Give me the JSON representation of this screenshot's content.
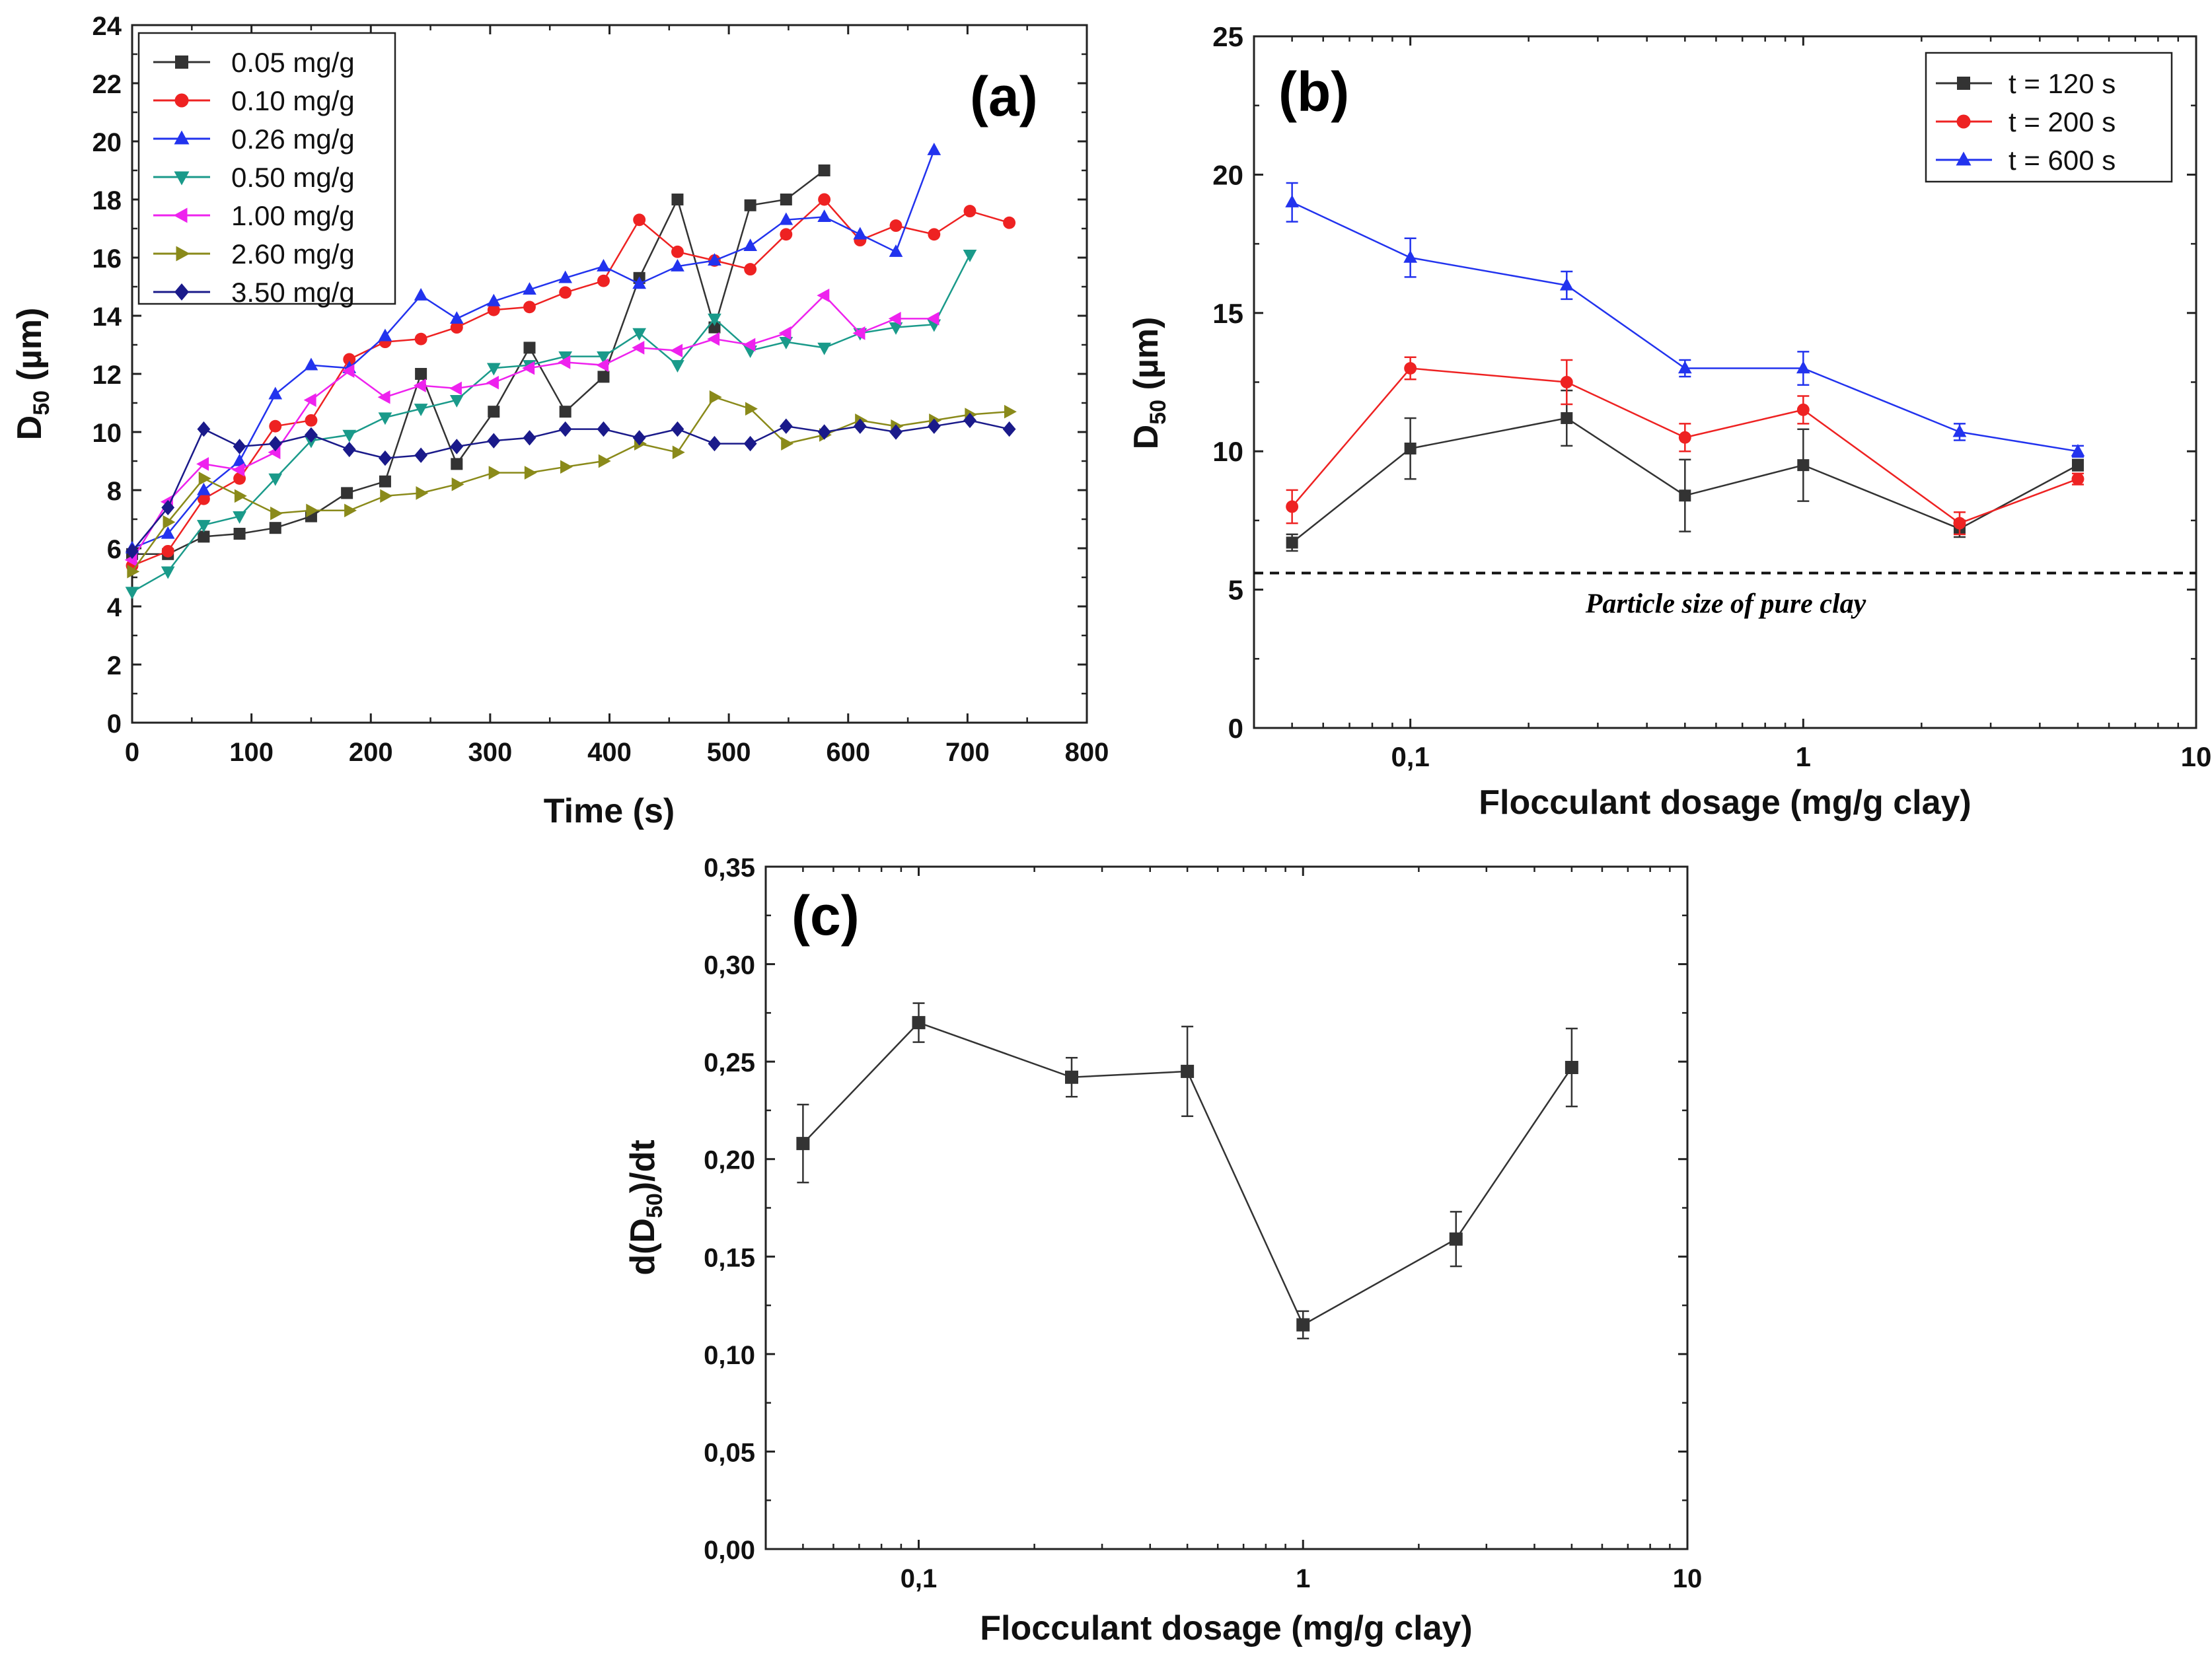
{
  "chart_data": [
    {
      "panel": "(a)",
      "type": "line",
      "xlabel": "Time (s)",
      "ylabel": "D50 (µm)",
      "xlim": [
        0,
        800
      ],
      "ylim": [
        0,
        24
      ],
      "xticks": [
        0,
        100,
        200,
        300,
        400,
        500,
        600,
        700,
        800
      ],
      "yticks": [
        0,
        2,
        4,
        6,
        8,
        10,
        12,
        14,
        16,
        18,
        20,
        22,
        24
      ],
      "legend_position": "top-left",
      "series": [
        {
          "name": "0.05 mg/g",
          "color": "#333333",
          "marker": "square",
          "x": [
            0,
            30,
            60,
            90,
            120,
            150,
            180,
            212,
            242,
            272,
            303,
            333,
            363,
            395,
            425,
            457,
            488,
            518,
            548,
            580
          ],
          "y": [
            5.8,
            5.8,
            6.4,
            6.5,
            6.7,
            7.1,
            7.9,
            8.3,
            12.0,
            8.9,
            10.7,
            12.9,
            10.7,
            11.9,
            15.3,
            18.0,
            13.6,
            17.8,
            18.0,
            19.0
          ]
        },
        {
          "name": "0.10 mg/g",
          "color": "#ee2222",
          "marker": "circle",
          "x": [
            0,
            30,
            60,
            90,
            120,
            150,
            182,
            212,
            242,
            272,
            303,
            333,
            363,
            395,
            425,
            457,
            488,
            518,
            548,
            580,
            610,
            640,
            672,
            702,
            735
          ],
          "y": [
            5.4,
            5.9,
            7.7,
            8.4,
            10.2,
            10.4,
            12.5,
            13.1,
            13.2,
            13.6,
            14.2,
            14.3,
            14.8,
            15.2,
            17.3,
            16.2,
            15.9,
            15.6,
            16.8,
            18.0,
            16.6,
            17.1,
            16.8,
            17.6,
            17.2
          ]
        },
        {
          "name": "0.26 mg/g",
          "color": "#2233ee",
          "marker": "triangle-up",
          "x": [
            0,
            30,
            60,
            90,
            120,
            150,
            182,
            212,
            242,
            272,
            303,
            333,
            363,
            395,
            425,
            457,
            488,
            518,
            548,
            580,
            610,
            640,
            672
          ],
          "y": [
            6.0,
            6.5,
            8.0,
            9.0,
            11.3,
            12.3,
            12.2,
            13.3,
            14.7,
            13.9,
            14.5,
            14.9,
            15.3,
            15.7,
            15.1,
            15.7,
            15.9,
            16.4,
            17.3,
            17.4,
            16.8,
            16.2,
            19.7
          ]
        },
        {
          "name": "0.50 mg/g",
          "color": "#1a9a8a",
          "marker": "triangle-down",
          "x": [
            0,
            30,
            60,
            90,
            120,
            150,
            182,
            212,
            242,
            272,
            303,
            333,
            363,
            395,
            425,
            457,
            488,
            518,
            548,
            580,
            610,
            640,
            672,
            702
          ],
          "y": [
            4.5,
            5.2,
            6.8,
            7.1,
            8.4,
            9.7,
            9.9,
            10.5,
            10.8,
            11.1,
            12.2,
            12.3,
            12.6,
            12.6,
            13.4,
            12.3,
            13.9,
            12.8,
            13.1,
            12.9,
            13.4,
            13.6,
            13.7,
            16.1
          ]
        },
        {
          "name": "1.00 mg/g",
          "color": "#ee22ee",
          "marker": "triangle-left",
          "x": [
            0,
            30,
            60,
            90,
            120,
            150,
            182,
            212,
            242,
            272,
            303,
            333,
            363,
            395,
            425,
            457,
            488,
            518,
            548,
            580,
            610,
            640,
            672
          ],
          "y": [
            5.6,
            7.6,
            8.9,
            8.7,
            9.3,
            11.1,
            12.1,
            11.2,
            11.6,
            11.5,
            11.7,
            12.2,
            12.4,
            12.3,
            12.9,
            12.8,
            13.2,
            13.0,
            13.4,
            14.7,
            13.4,
            13.9,
            13.9
          ]
        },
        {
          "name": "2.60 mg/g",
          "color": "#8a8a1a",
          "marker": "triangle-right",
          "x": [
            0,
            30,
            60,
            90,
            120,
            150,
            182,
            212,
            242,
            272,
            303,
            333,
            363,
            395,
            425,
            457,
            488,
            518,
            548,
            580,
            610,
            640,
            672,
            702,
            735
          ],
          "y": [
            5.2,
            6.9,
            8.4,
            7.8,
            7.2,
            7.3,
            7.3,
            7.8,
            7.9,
            8.2,
            8.6,
            8.6,
            8.8,
            9.0,
            9.6,
            9.3,
            11.2,
            10.8,
            9.6,
            9.9,
            10.4,
            10.2,
            10.4,
            10.6,
            10.7
          ]
        },
        {
          "name": "3.50 mg/g",
          "color": "#1a1a8a",
          "marker": "diamond",
          "x": [
            0,
            30,
            60,
            90,
            120,
            150,
            182,
            212,
            242,
            272,
            303,
            333,
            363,
            395,
            425,
            457,
            488,
            518,
            548,
            580,
            610,
            640,
            672,
            702,
            735
          ],
          "y": [
            5.9,
            7.4,
            10.1,
            9.5,
            9.6,
            9.9,
            9.4,
            9.1,
            9.2,
            9.5,
            9.7,
            9.8,
            10.1,
            10.1,
            9.8,
            10.1,
            9.6,
            9.6,
            10.2,
            10.0,
            10.2,
            10.0,
            10.2,
            10.4,
            10.1
          ]
        }
      ]
    },
    {
      "panel": "(b)",
      "type": "line",
      "xlabel": "Flocculant dosage (mg/g clay)",
      "ylabel": "D50 (µm)",
      "xscale": "log",
      "xlim": [
        0.04,
        10
      ],
      "ylim": [
        0,
        25
      ],
      "xticks": [
        0.1,
        1,
        10
      ],
      "xticklabels": [
        "0,1",
        "1",
        "10"
      ],
      "yticks": [
        0,
        5,
        10,
        15,
        20,
        25
      ],
      "legend_position": "top-right",
      "reference_line": {
        "y": 5.6,
        "style": "dashed",
        "label": "Particle size of pure clay"
      },
      "series": [
        {
          "name": "t = 120 s",
          "color": "#333333",
          "marker": "square",
          "x": [
            0.05,
            0.1,
            0.25,
            0.5,
            1.0,
            2.5,
            5.0
          ],
          "y": [
            6.7,
            10.1,
            11.2,
            8.4,
            9.5,
            7.2,
            9.5
          ],
          "err": [
            0.3,
            1.1,
            1.0,
            1.3,
            1.3,
            0.3,
            0.2
          ]
        },
        {
          "name": "t = 200 s",
          "color": "#ee2222",
          "marker": "circle",
          "x": [
            0.05,
            0.1,
            0.25,
            0.5,
            1.0,
            2.5,
            5.0
          ],
          "y": [
            8.0,
            13.0,
            12.5,
            10.5,
            11.5,
            7.4,
            9.0
          ],
          "err": [
            0.6,
            0.4,
            0.8,
            0.5,
            0.5,
            0.4,
            0.2
          ]
        },
        {
          "name": "t = 600 s",
          "color": "#2233ee",
          "marker": "triangle-up",
          "x": [
            0.05,
            0.1,
            0.25,
            0.5,
            1.0,
            2.5,
            5.0
          ],
          "y": [
            19.0,
            17.0,
            16.0,
            13.0,
            13.0,
            10.7,
            10.0
          ],
          "err": [
            0.7,
            0.7,
            0.5,
            0.3,
            0.6,
            0.3,
            0.2
          ]
        }
      ]
    },
    {
      "panel": "(c)",
      "type": "line",
      "xlabel": "Flocculant dosage (mg/g clay)",
      "ylabel": "d(D50)/dt",
      "xscale": "log",
      "xlim": [
        0.04,
        10
      ],
      "ylim": [
        0,
        0.35
      ],
      "xticks": [
        0.1,
        1,
        10
      ],
      "xticklabels": [
        "0,1",
        "1",
        "10"
      ],
      "yticks": [
        0,
        0.05,
        0.1,
        0.15,
        0.2,
        0.25,
        0.3,
        0.35
      ],
      "yticklabels": [
        "0,00",
        "0,05",
        "0,10",
        "0,15",
        "0,20",
        "0,25",
        "0,30",
        "0,35"
      ],
      "series": [
        {
          "color": "#333333",
          "marker": "square",
          "x": [
            0.05,
            0.1,
            0.25,
            0.5,
            1.0,
            2.5,
            5.0
          ],
          "y": [
            0.208,
            0.27,
            0.242,
            0.245,
            0.115,
            0.159,
            0.247
          ],
          "err": [
            0.02,
            0.01,
            0.01,
            0.023,
            0.007,
            0.014,
            0.02
          ]
        }
      ]
    }
  ]
}
